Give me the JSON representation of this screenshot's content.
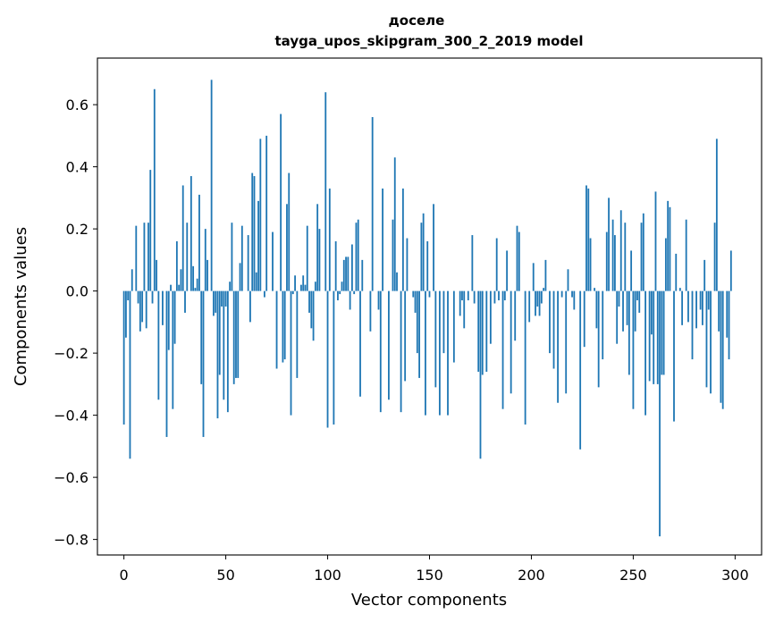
{
  "chart_data": {
    "type": "bar",
    "title": "доселе",
    "subtitle": "tayga_upos_skipgram_300_2_2019 model",
    "xlabel": "Vector components",
    "ylabel": "Components values",
    "xlim": [
      -13,
      313
    ],
    "ylim": [
      -0.85,
      0.75
    ],
    "xticks": [
      0,
      50,
      100,
      150,
      200,
      250,
      300
    ],
    "yticks": [
      0.6,
      0.4,
      0.2,
      0.0,
      -0.2,
      -0.4,
      -0.6,
      -0.8
    ],
    "ytick_labels": [
      "0.6",
      "0.4",
      "0.2",
      "0.0",
      "−0.2",
      "−0.4",
      "−0.6",
      "−0.8"
    ],
    "grid": false,
    "bar_color": "#1f77b4",
    "values": [
      -0.43,
      -0.15,
      -0.03,
      -0.54,
      0.07,
      0.0,
      0.21,
      -0.04,
      -0.13,
      -0.1,
      0.22,
      -0.12,
      0.22,
      0.39,
      -0.04,
      0.65,
      0.1,
      -0.35,
      0.0,
      -0.11,
      0.0,
      -0.47,
      -0.19,
      0.02,
      -0.38,
      -0.17,
      0.16,
      0.02,
      0.07,
      0.34,
      -0.07,
      0.22,
      0.0,
      0.37,
      0.08,
      0.01,
      0.04,
      0.31,
      -0.3,
      -0.47,
      0.2,
      0.1,
      0.0,
      0.68,
      -0.08,
      -0.07,
      -0.41,
      -0.27,
      -0.05,
      -0.35,
      -0.05,
      -0.39,
      0.03,
      0.22,
      -0.3,
      -0.28,
      -0.28,
      0.09,
      0.21,
      0.0,
      0.0,
      0.18,
      -0.1,
      0.38,
      0.37,
      0.06,
      0.29,
      0.49,
      0.0,
      -0.02,
      0.5,
      0.0,
      0.0,
      0.19,
      0.0,
      -0.25,
      0.0,
      0.57,
      -0.23,
      -0.22,
      0.28,
      0.38,
      -0.4,
      -0.01,
      0.05,
      -0.28,
      0.0,
      0.02,
      0.05,
      0.02,
      0.21,
      -0.07,
      -0.12,
      -0.16,
      0.03,
      0.28,
      0.2,
      0.0,
      0.0,
      0.64,
      -0.44,
      0.33,
      0.0,
      -0.43,
      0.16,
      -0.03,
      -0.01,
      0.03,
      0.1,
      0.11,
      0.11,
      -0.06,
      0.15,
      -0.01,
      0.22,
      0.23,
      -0.34,
      0.1,
      0.0,
      0.0,
      0.0,
      -0.13,
      0.56,
      0.0,
      0.0,
      -0.06,
      -0.39,
      0.33,
      0.0,
      0.0,
      -0.35,
      0.0,
      0.23,
      0.43,
      0.06,
      0.0,
      -0.39,
      0.33,
      -0.29,
      0.17,
      0.0,
      0.0,
      -0.02,
      -0.07,
      -0.2,
      -0.28,
      0.22,
      0.25,
      -0.4,
      0.16,
      -0.02,
      0.0,
      0.28,
      -0.31,
      0.0,
      -0.4,
      0.0,
      -0.2,
      0.0,
      -0.4,
      0.0,
      0.0,
      -0.23,
      0.0,
      0.0,
      -0.08,
      -0.03,
      -0.12,
      0.0,
      -0.03,
      0.0,
      0.18,
      -0.04,
      0.0,
      -0.26,
      -0.54,
      -0.27,
      0.0,
      -0.26,
      0.0,
      -0.17,
      0.0,
      -0.04,
      0.17,
      -0.03,
      0.0,
      -0.38,
      -0.03,
      0.13,
      0.0,
      -0.33,
      0.0,
      -0.16,
      0.21,
      0.19,
      0.0,
      0.0,
      -0.43,
      0.0,
      -0.1,
      0.0,
      0.09,
      -0.08,
      -0.05,
      -0.08,
      -0.04,
      0.01,
      0.1,
      0.0,
      -0.2,
      0.0,
      -0.25,
      0.0,
      -0.36,
      0.0,
      -0.02,
      0.0,
      -0.33,
      0.07,
      0.0,
      -0.02,
      -0.06,
      0.0,
      0.0,
      -0.51,
      0.0,
      -0.18,
      0.34,
      0.33,
      0.17,
      0.0,
      0.01,
      -0.12,
      -0.31,
      0.0,
      -0.22,
      0.0,
      0.19,
      0.3,
      0.0,
      0.23,
      0.18,
      -0.17,
      -0.05,
      0.26,
      -0.13,
      0.22,
      -0.11,
      -0.27,
      0.13,
      -0.38,
      -0.13,
      -0.03,
      -0.07,
      0.22,
      0.25,
      -0.4,
      0.0,
      -0.29,
      -0.14,
      -0.3,
      0.32,
      -0.3,
      -0.79,
      -0.27,
      -0.27,
      0.17,
      0.29,
      0.27,
      0.0,
      -0.42,
      0.12,
      0.0,
      0.01,
      -0.11,
      0.0,
      0.23,
      -0.1,
      0.0,
      -0.22,
      0.0,
      -0.12,
      0.0,
      -0.06,
      -0.11,
      0.1,
      -0.31,
      -0.06,
      -0.33,
      0.0,
      0.22,
      0.49,
      -0.13,
      -0.36,
      -0.38,
      0.0,
      -0.15,
      -0.22,
      0.13
    ]
  }
}
